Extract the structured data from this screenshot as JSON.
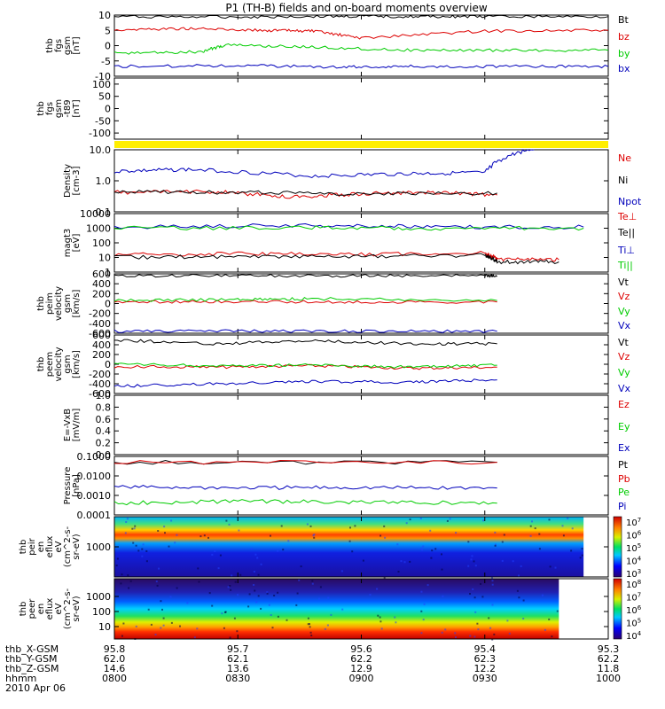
{
  "title": "P1 (TH-B) fields and on-board moments overview",
  "footer": {
    "row_labels": [
      "thb_X-GSM",
      "thb_Y-GSM",
      "thb_Z-GSM",
      "hhmm",
      "2010 Apr 06"
    ],
    "columns": [
      {
        "x": "95.8",
        "y": "62.0",
        "z": "14.6",
        "hhmm": "0800"
      },
      {
        "x": "95.7",
        "y": "62.1",
        "z": "13.6",
        "hhmm": "0830"
      },
      {
        "x": "95.6",
        "y": "62.2",
        "z": "12.9",
        "hhmm": "0900"
      },
      {
        "x": "95.4",
        "y": "62.3",
        "z": "12.2",
        "hhmm": "0930"
      },
      {
        "x": "95.3",
        "y": "62.2",
        "z": "11.8",
        "hhmm": "1000"
      }
    ]
  },
  "colors": {
    "black": "#000000",
    "red": "#dd0000",
    "green": "#00cc00",
    "blue": "#0000bb",
    "yellow": "#ffee00"
  },
  "chart_data": [
    {
      "type": "line",
      "ylabel": [
        "thb",
        "fgs",
        "gsm",
        "[nT]"
      ],
      "yticks": [
        "10",
        "5",
        "0",
        "-5",
        "-10"
      ],
      "ylim": [
        -10,
        10
      ],
      "series": [
        {
          "name": "Bt",
          "color": "#000000",
          "x": [
            8.0,
            8.5,
            8.9,
            9.2,
            9.5,
            10.0
          ],
          "y": [
            9.5,
            9.4,
            9.6,
            9.5,
            9.5,
            9.5
          ]
        },
        {
          "name": "bz",
          "color": "#dd0000",
          "x": [
            8.0,
            8.3,
            8.6,
            8.8,
            9.0,
            9.5,
            10.0
          ],
          "y": [
            5.2,
            5.6,
            5.0,
            4.8,
            2.5,
            4.8,
            5.0
          ]
        },
        {
          "name": "by",
          "color": "#00cc00",
          "x": [
            8.0,
            8.35,
            8.45,
            8.8,
            9.2,
            9.6,
            10.0
          ],
          "y": [
            -2.5,
            -2.0,
            0.2,
            -0.5,
            -1.5,
            -1.5,
            -1.5
          ]
        },
        {
          "name": "bx",
          "color": "#0000bb",
          "x": [
            8.0,
            8.5,
            8.9,
            9.2,
            9.6,
            10.0
          ],
          "y": [
            -6.8,
            -6.5,
            -7.0,
            -6.8,
            -6.8,
            -6.8
          ]
        }
      ]
    },
    {
      "type": "line",
      "ylabel": [
        "thb",
        "fgs",
        "gsm",
        "-t89",
        "[nT]"
      ],
      "yticks": [
        "100",
        "50",
        "0",
        "-50",
        "-100"
      ],
      "ylim": [
        -125,
        125
      ],
      "series": []
    },
    {
      "type": "line",
      "ylabel": [
        "Density",
        "[cm-3]"
      ],
      "yticks": [
        "10.0",
        "1.0",
        "0.1"
      ],
      "ylim": [
        0.1,
        10
      ],
      "scale": "log",
      "series": [
        {
          "name": "Ne",
          "color": "#dd0000",
          "x": [
            8.0,
            8.4,
            8.7,
            9.0,
            9.3,
            9.55
          ],
          "y": [
            0.42,
            0.45,
            0.3,
            0.38,
            0.42,
            0.35
          ]
        },
        {
          "name": "Ni",
          "color": "#000000",
          "x": [
            8.0,
            8.5,
            9.0,
            9.55
          ],
          "y": [
            0.45,
            0.42,
            0.38,
            0.4
          ]
        },
        {
          "name": "Npot",
          "color": "#0000bb",
          "x": [
            8.0,
            8.3,
            8.8,
            9.2,
            9.5,
            9.7
          ],
          "y": [
            2.0,
            2.3,
            1.4,
            1.7,
            1.8,
            11.0
          ]
        }
      ]
    },
    {
      "type": "line",
      "ylabel": [
        "magt3",
        "[eV]"
      ],
      "yticks": [
        "10000",
        "1000",
        "100",
        "10",
        "1"
      ],
      "ylim": [
        1,
        10000
      ],
      "scale": "log",
      "series": [
        {
          "name": "Te⊥",
          "color": "#dd0000",
          "x": [
            8.0,
            8.5,
            9.0,
            9.5,
            9.55,
            9.8
          ],
          "y": [
            15,
            18,
            16,
            20,
            7,
            7
          ]
        },
        {
          "name": "Te||",
          "color": "#000000",
          "x": [
            8.0,
            8.5,
            9.0,
            9.5,
            9.55,
            9.8
          ],
          "y": [
            10,
            12,
            12,
            14,
            5,
            5
          ]
        },
        {
          "name": "Ti⊥",
          "color": "#0000bb",
          "x": [
            8.0,
            8.8,
            9.3,
            9.9
          ],
          "y": [
            1200,
            1600,
            1200,
            1200
          ]
        },
        {
          "name": "Ti||",
          "color": "#00cc00",
          "x": [
            8.0,
            8.8,
            9.3,
            9.9
          ],
          "y": [
            1000,
            1100,
            1000,
            1000
          ]
        }
      ]
    },
    {
      "type": "line",
      "ylabel": [
        "thb",
        "peim",
        "velocity",
        "gsm",
        "[km/s]"
      ],
      "yticks": [
        "600",
        "400",
        "200",
        "0",
        "-200",
        "-400",
        "-600"
      ],
      "ylim": [
        -600,
        600
      ],
      "series": [
        {
          "name": "Vt",
          "color": "#000000",
          "x": [
            8.0,
            8.5,
            9.0,
            9.5,
            9.55
          ],
          "y": [
            560,
            565,
            560,
            562,
            560
          ]
        },
        {
          "name": "Vz",
          "color": "#dd0000",
          "x": [
            8.0,
            8.5,
            9.0,
            9.55
          ],
          "y": [
            30,
            40,
            30,
            30
          ]
        },
        {
          "name": "Vy",
          "color": "#00cc00",
          "x": [
            8.0,
            8.5,
            8.8,
            9.55
          ],
          "y": [
            60,
            80,
            100,
            60
          ]
        },
        {
          "name": "Vx",
          "color": "#0000bb",
          "x": [
            8.0,
            8.5,
            9.0,
            9.55
          ],
          "y": [
            -560,
            -555,
            -560,
            -560
          ]
        }
      ]
    },
    {
      "type": "line",
      "ylabel": [
        "thb",
        "peem",
        "velocity",
        "gsm",
        "[km/s]"
      ],
      "yticks": [
        "600",
        "400",
        "200",
        "0",
        "-200",
        "-400",
        "-600"
      ],
      "ylim": [
        -600,
        600
      ],
      "series": [
        {
          "name": "Vt",
          "color": "#000000",
          "x": [
            8.0,
            8.4,
            8.8,
            9.2,
            9.55
          ],
          "y": [
            500,
            420,
            480,
            420,
            420
          ]
        },
        {
          "name": "Vz",
          "color": "#dd0000",
          "x": [
            8.0,
            8.4,
            8.8,
            9.2,
            9.55
          ],
          "y": [
            -50,
            -60,
            -30,
            -80,
            -60
          ]
        },
        {
          "name": "Vy",
          "color": "#00cc00",
          "x": [
            8.0,
            8.4,
            8.8,
            9.2,
            9.55
          ],
          "y": [
            0,
            -30,
            -10,
            -60,
            -20
          ]
        },
        {
          "name": "Vx",
          "color": "#0000bb",
          "x": [
            8.0,
            8.4,
            8.8,
            9.2,
            9.55
          ],
          "y": [
            -450,
            -400,
            -350,
            -370,
            -320
          ]
        }
      ]
    },
    {
      "type": "line",
      "ylabel": [
        "E=-VxB",
        "[mV/m]"
      ],
      "yticks": [
        "1.0",
        "0.8",
        "0.6",
        "0.4",
        "0.2",
        "0.0"
      ],
      "ylim": [
        0,
        1
      ],
      "series": [],
      "legend": [
        {
          "name": "Ez",
          "color": "#dd0000"
        },
        {
          "name": "Ey",
          "color": "#00cc00"
        },
        {
          "name": "Ex",
          "color": "#0000bb"
        }
      ]
    },
    {
      "type": "line",
      "ylabel": [
        "Pressure",
        "[nPa]"
      ],
      "yticks": [
        "0.1000",
        "0.0100",
        "0.0010",
        "0.0001"
      ],
      "ylim": [
        0.0001,
        0.1
      ],
      "scale": "log",
      "series": [
        {
          "name": "Pt",
          "color": "#000000",
          "x": [
            8.0,
            9.55
          ],
          "y": [
            0.05,
            0.05
          ]
        },
        {
          "name": "Pb",
          "color": "#dd0000",
          "x": [
            8.0,
            9.55
          ],
          "y": [
            0.05,
            0.05
          ]
        },
        {
          "name": "Pe",
          "color": "#00cc00",
          "x": [
            8.0,
            8.5,
            9.0,
            9.55
          ],
          "y": [
            0.0004,
            0.0005,
            0.00045,
            0.0004
          ]
        },
        {
          "name": "Pi",
          "color": "#0000bb",
          "x": [
            8.0,
            8.5,
            9.0,
            9.55
          ],
          "y": [
            0.0028,
            0.0025,
            0.0026,
            0.0024
          ]
        }
      ]
    },
    {
      "type": "heatmap",
      "ylabel": [
        "thb",
        "peir",
        "en",
        "eflux",
        "eV",
        "(cm^2-s-",
        "sr-eV)"
      ],
      "yticks": [
        "1000"
      ],
      "colorbar_ticks": [
        "10^7",
        "10^6",
        "10^5",
        "10^4",
        "10^3"
      ],
      "x_end": 9.9
    },
    {
      "type": "heatmap",
      "ylabel": [
        "thb",
        "peer",
        "en",
        "eflux",
        "eV",
        "(cm^2-s-",
        "sr-eV)"
      ],
      "yticks": [
        "1000",
        "100",
        "10"
      ],
      "colorbar_ticks": [
        "10^8",
        "10^7",
        "10^6",
        "10^5",
        "10^4"
      ],
      "x_end": 9.8
    }
  ]
}
